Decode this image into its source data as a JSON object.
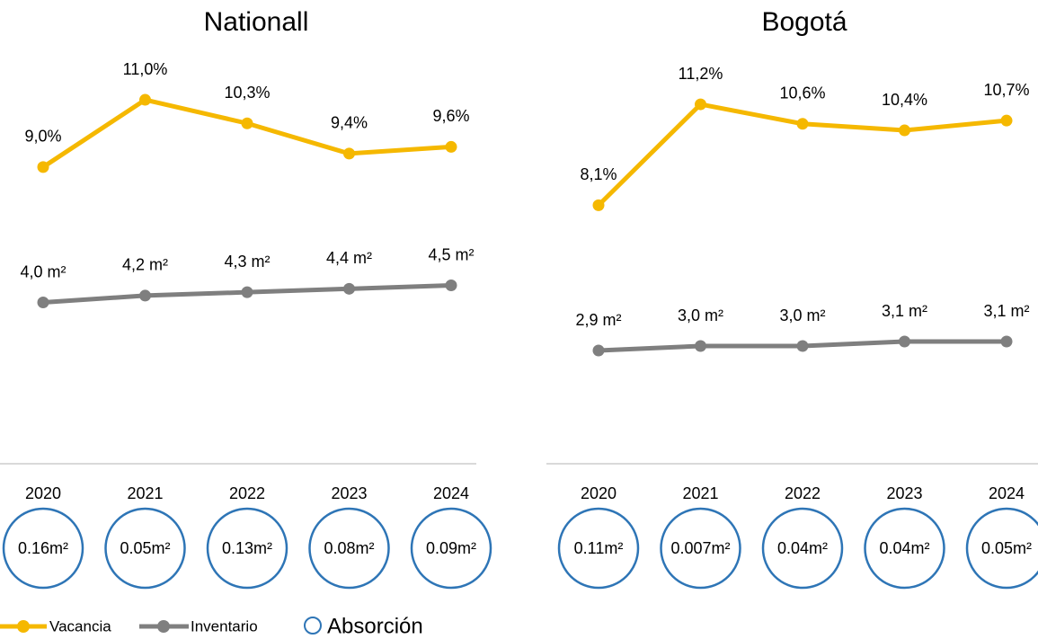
{
  "chart_data": [
    {
      "type": "line",
      "title": "Nationall",
      "categories": [
        "2020",
        "2021",
        "2022",
        "2023",
        "2024"
      ],
      "ylim": [
        0.6,
        12.9
      ],
      "y2lim": [
        -0.3,
        11.8
      ],
      "series": [
        {
          "name": "Vacancia",
          "color": "#f5b800",
          "values": [
            9.0,
            11.0,
            10.3,
            9.4,
            9.6
          ],
          "value_labels": [
            "9,0%",
            "11,0%",
            "10,3%",
            "9,4%",
            "9,6%"
          ]
        },
        {
          "name": "Inventario",
          "color": "#7f7f7f",
          "axis": "y2",
          "values": [
            4.0,
            4.2,
            4.3,
            4.4,
            4.5
          ],
          "value_labels": [
            "4,0 m²",
            "4,2 m²",
            "4,3 m²",
            "4,4 m²",
            "4,5 m²"
          ]
        }
      ],
      "absorption": {
        "name": "Absorción",
        "color": "#2e75b6",
        "values": [
          0.16,
          0.05,
          0.13,
          0.08,
          0.09
        ],
        "value_labels": [
          "0.16m²",
          "0.05m²",
          "0.13m²",
          "0.08m²",
          "0.09m²"
        ]
      }
    },
    {
      "type": "line",
      "title": "Bogotá",
      "categories": [
        "2020",
        "2021",
        "2022",
        "2023",
        "2024"
      ],
      "ylim": [
        0.6,
        13.3
      ],
      "y2lim": [
        0.7,
        9.9
      ],
      "series": [
        {
          "color": "#f5b800",
          "values": [
            8.1,
            11.2,
            10.6,
            10.4,
            10.7
          ],
          "value_labels": [
            "8,1%",
            "11,2%",
            "10,6%",
            "10,4%",
            "10,7%"
          ]
        },
        {
          "color": "#7f7f7f",
          "axis": "y2",
          "values": [
            2.9,
            3.0,
            3.0,
            3.1,
            3.1
          ],
          "value_labels": [
            "2,9 m²",
            "3,0 m²",
            "3,0 m²",
            "3,1 m²",
            "3,1 m²"
          ]
        }
      ],
      "absorption": {
        "color": "#2e75b6",
        "values": [
          0.11,
          0.007,
          0.04,
          0.04,
          0.05
        ],
        "value_labels": [
          "0.11m²",
          "0.007m²",
          "0.04m²",
          "0.04m²",
          "0.05m²"
        ]
      }
    }
  ]
}
